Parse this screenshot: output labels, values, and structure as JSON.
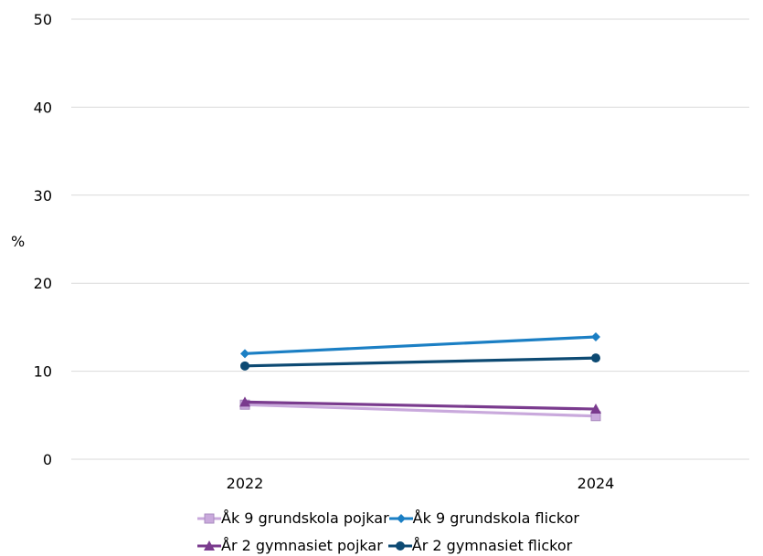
{
  "chart_data": {
    "type": "line",
    "categories": [
      "2022",
      "2024"
    ],
    "series": [
      {
        "name": "Åk 9 grundskola pojkar",
        "values": [
          6.2,
          4.9
        ],
        "color": "#c9a9dc",
        "marker": "square"
      },
      {
        "name": "Åk 9 grundskola flickor",
        "values": [
          12.0,
          13.9
        ],
        "color": "#1b7fc4",
        "marker": "diamond"
      },
      {
        "name": "År 2 gymnasiet pojkar",
        "values": [
          6.5,
          5.7
        ],
        "color": "#7a3b8e",
        "marker": "triangle"
      },
      {
        "name": "År 2 gymnasiet flickor",
        "values": [
          10.6,
          11.5
        ],
        "color": "#0d4a73",
        "marker": "circle"
      }
    ],
    "ylabel": "%",
    "ylim": [
      0,
      50
    ],
    "yticks": [
      "0",
      "10",
      "20",
      "30",
      "40",
      "50"
    ],
    "grid": true,
    "legend_position": "bottom"
  }
}
